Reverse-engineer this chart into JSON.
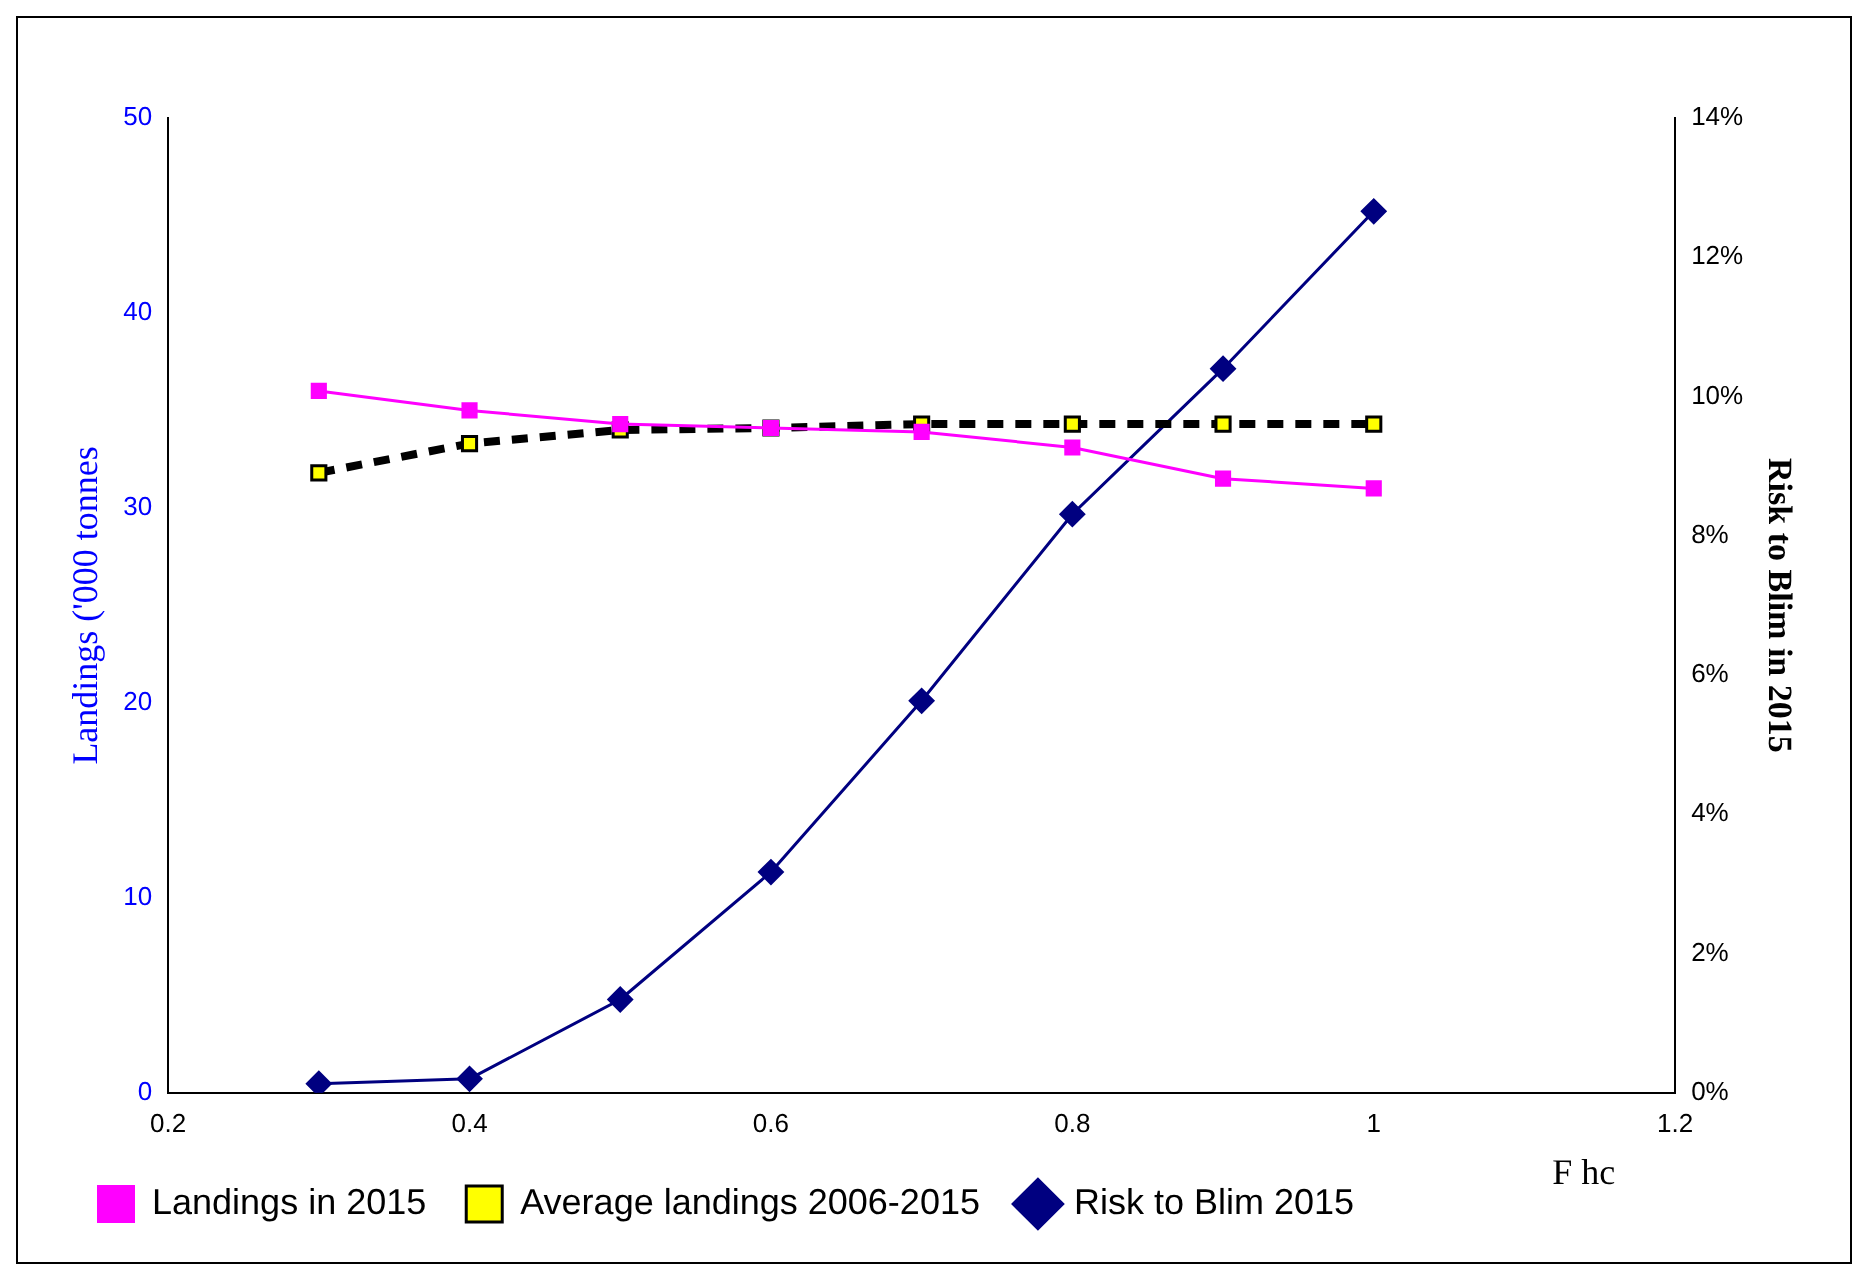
{
  "chart_data": {
    "type": "line",
    "xlabel": "F hc",
    "ylabel": "Landings ('000 tonnes",
    "y2label": "Risk to Blim in 2015",
    "x": [
      0.3,
      0.4,
      0.5,
      0.6,
      0.7,
      0.8,
      0.9,
      1.0
    ],
    "xlim": [
      0.2,
      1.2
    ],
    "xticks": [
      0.2,
      0.4,
      0.6,
      0.8,
      1,
      1.2
    ],
    "ylim": [
      0,
      50
    ],
    "yticks": [
      0,
      10,
      20,
      30,
      40,
      50
    ],
    "y2lim": [
      0,
      14
    ],
    "y2ticks": [
      {
        "value": 0,
        "label": "0%"
      },
      {
        "value": 2,
        "label": "2%"
      },
      {
        "value": 4,
        "label": "4%"
      },
      {
        "value": 6,
        "label": "6%"
      },
      {
        "value": 8,
        "label": "8%"
      },
      {
        "value": 10,
        "label": "10%"
      },
      {
        "value": 12,
        "label": "12%"
      },
      {
        "value": 14,
        "label": "14%"
      }
    ],
    "grid": false,
    "legend": "bottom",
    "series": [
      {
        "name": "Landings in 2015",
        "color": "#ff00ff",
        "marker": "square",
        "line_style": "solid",
        "values": [
          36.0,
          35.0,
          34.3,
          34.1,
          33.9,
          33.1,
          31.5,
          31.0
        ]
      },
      {
        "name": "Average landings 2006-2015",
        "color": "#000000",
        "marker": "square",
        "line_style": "dashed",
        "values": [
          31.8,
          33.3,
          34.0,
          34.1,
          34.3,
          34.3,
          34.3,
          34.3
        ]
      },
      {
        "name": "Risk to Blim 2015",
        "color": "#000080",
        "marker": "diamond",
        "line_style": "solid",
        "axis": "y2",
        "values": [
          0.13,
          0.2,
          1.34,
          3.17,
          5.63,
          8.31,
          10.4,
          12.66
        ]
      }
    ]
  }
}
